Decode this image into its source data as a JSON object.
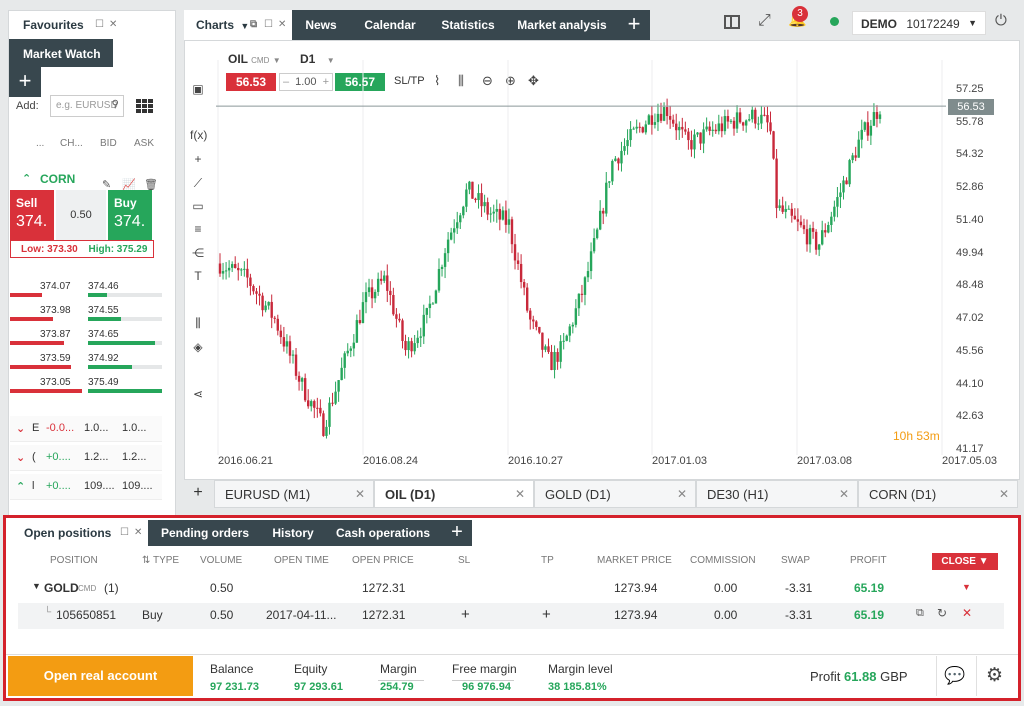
{
  "left_panel": {
    "favourites_tab": "Favourites",
    "market_watch_tab": "Market Watch",
    "add_label": "Add:",
    "add_placeholder": "e.g. EURUSD",
    "columns": [
      "...",
      "CH...",
      "BID",
      "ASK"
    ],
    "featured": {
      "symbol": "CORN",
      "sell_label": "Sell",
      "sell_price": "374.",
      "spread": "0.50",
      "buy_label": "Buy",
      "buy_price": "374.",
      "low": "Low: 373.30",
      "high": "High: 375.29"
    },
    "depth": [
      {
        "bid": "374.07",
        "ask": "374.46",
        "bid_fill": 0.45,
        "ask_fill": 0.25
      },
      {
        "bid": "373.98",
        "ask": "374.55",
        "bid_fill": 0.6,
        "ask_fill": 0.45
      },
      {
        "bid": "373.87",
        "ask": "374.65",
        "bid_fill": 0.75,
        "ask_fill": 0.9
      },
      {
        "bid": "373.59",
        "ask": "374.92",
        "bid_fill": 0.85,
        "ask_fill": 0.6
      },
      {
        "bid": "373.05",
        "ask": "375.49",
        "bid_fill": 1.0,
        "ask_fill": 1.0
      }
    ],
    "instruments": [
      {
        "dir": "down",
        "sym": "E",
        "change": "-0.0...",
        "bid": "1.0...",
        "ask": "1.0..."
      },
      {
        "dir": "down",
        "sym": "(",
        "change": "+0....",
        "bid": "1.2...",
        "ask": "1.2..."
      },
      {
        "dir": "up",
        "sym": "l",
        "change": "+0....",
        "bid": "109....",
        "ask": "109...."
      }
    ]
  },
  "top_tabs": {
    "charts": "Charts",
    "tabs": [
      "News",
      "Calendar",
      "Statistics",
      "Market analysis"
    ]
  },
  "header": {
    "notifications": "3",
    "account_mode": "DEMO",
    "account_number": "10172249"
  },
  "chart": {
    "symbol": "OIL",
    "symbol_tag": "CMD",
    "timeframe": "D1",
    "sell_price": "56.53",
    "volume": "1.00",
    "buy_price": "56.57",
    "sltp_label": "SL/TP",
    "current_price": "56.53",
    "countdown_h": "10h",
    "countdown_m": "53m"
  },
  "chart_data": {
    "type": "candlestick",
    "symbol": "OIL",
    "timeframe": "D1",
    "y_ticks": [
      "57.25",
      "55.78",
      "54.32",
      "52.86",
      "51.40",
      "49.94",
      "48.48",
      "47.02",
      "45.56",
      "44.10",
      "42.63",
      "41.17"
    ],
    "x_ticks": [
      "2016.06.21",
      "2016.08.24",
      "2016.10.27",
      "2017.01.03",
      "2017.03.08",
      "2017.05.03"
    ],
    "ylim": [
      41.17,
      57.25
    ],
    "current_price": 56.53,
    "trend_anchors": [
      {
        "t": 0,
        "p": 49.5
      },
      {
        "t": 0.04,
        "p": 48.8
      },
      {
        "t": 0.08,
        "p": 47.0
      },
      {
        "t": 0.12,
        "p": 44.0
      },
      {
        "t": 0.15,
        "p": 42.2
      },
      {
        "t": 0.18,
        "p": 45.0
      },
      {
        "t": 0.21,
        "p": 47.8
      },
      {
        "t": 0.24,
        "p": 48.8
      },
      {
        "t": 0.27,
        "p": 45.6
      },
      {
        "t": 0.3,
        "p": 47.0
      },
      {
        "t": 0.33,
        "p": 50.5
      },
      {
        "t": 0.36,
        "p": 52.8
      },
      {
        "t": 0.39,
        "p": 51.8
      },
      {
        "t": 0.42,
        "p": 51.3
      },
      {
        "t": 0.45,
        "p": 47.0
      },
      {
        "t": 0.48,
        "p": 45.0
      },
      {
        "t": 0.5,
        "p": 45.8
      },
      {
        "t": 0.53,
        "p": 48.5
      },
      {
        "t": 0.55,
        "p": 51.0
      },
      {
        "t": 0.57,
        "p": 54.0
      },
      {
        "t": 0.6,
        "p": 55.2
      },
      {
        "t": 0.63,
        "p": 56.2
      },
      {
        "t": 0.65,
        "p": 56.4
      },
      {
        "t": 0.68,
        "p": 54.8
      },
      {
        "t": 0.72,
        "p": 55.5
      },
      {
        "t": 0.75,
        "p": 55.9
      },
      {
        "t": 0.78,
        "p": 56.1
      },
      {
        "t": 0.8,
        "p": 55.6
      },
      {
        "t": 0.81,
        "p": 52.0
      },
      {
        "t": 0.84,
        "p": 51.2
      },
      {
        "t": 0.87,
        "p": 50.3
      },
      {
        "t": 0.9,
        "p": 52.5
      },
      {
        "t": 0.93,
        "p": 55.0
      },
      {
        "t": 0.96,
        "p": 56.53
      }
    ]
  },
  "chart_tabs": [
    {
      "label": "EURUSD (M1)",
      "active": false
    },
    {
      "label": "OIL (D1)",
      "active": true
    },
    {
      "label": "GOLD (D1)",
      "active": false
    },
    {
      "label": "DE30 (H1)",
      "active": false
    },
    {
      "label": "CORN (D1)",
      "active": false
    }
  ],
  "bottom_tabs": {
    "open_positions": "Open positions",
    "tabs": [
      "Pending orders",
      "History",
      "Cash operations"
    ]
  },
  "positions_table": {
    "headers": [
      "POSITION",
      "TYPE",
      "VOLUME",
      "OPEN TIME",
      "OPEN PRICE",
      "SL",
      "TP",
      "MARKET PRICE",
      "COMMISSION",
      "SWAP",
      "PROFIT"
    ],
    "close_label": "CLOSE",
    "group": {
      "symbol": "GOLD",
      "tag": "CMD",
      "count": "(1)",
      "volume": "0.50",
      "open_price": "1272.31",
      "market_price": "1273.94",
      "commission": "0.00",
      "swap": "-3.31",
      "profit": "65.19"
    },
    "rows": [
      {
        "position": "105650851",
        "type": "Buy",
        "volume": "0.50",
        "open_time": "2017-04-11...",
        "open_price": "1272.31",
        "sl": "+",
        "tp": "+",
        "market_price": "1273.94",
        "commission": "0.00",
        "swap": "-3.31",
        "profit": "65.19"
      }
    ]
  },
  "footer": {
    "real_account_button": "Open real account",
    "balance_label": "Balance",
    "balance_value": "97 231.73",
    "equity_label": "Equity",
    "equity_value": "97 293.61",
    "margin_label": "Margin",
    "margin_value": "254.79",
    "free_margin_label": "Free margin",
    "free_margin_value": "96 976.94",
    "margin_level_label": "Margin level",
    "margin_level_value": "38 185.81%",
    "profit_label": "Profit",
    "profit_value": "61.88",
    "profit_currency": "GBP"
  },
  "colors": {
    "sell": "#d9313a",
    "buy": "#26a65b",
    "dark_tab": "#38474e",
    "accent_orange": "#f39c12",
    "highlight_frame": "#d4212b"
  }
}
